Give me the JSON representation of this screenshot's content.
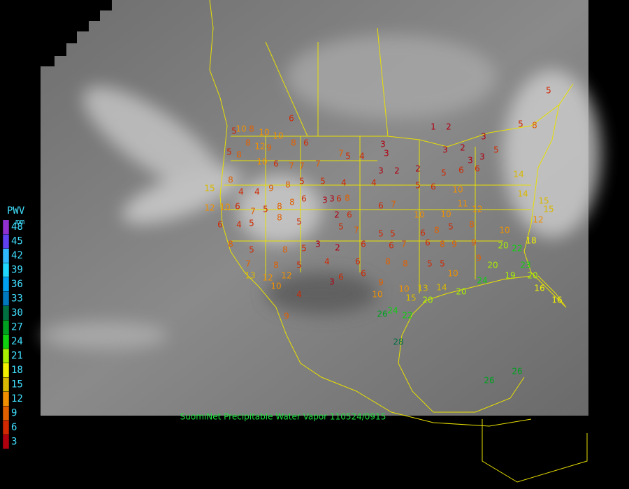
{
  "legend": {
    "title": "PWV",
    "unit": "mm",
    "entries": [
      {
        "label": "48",
        "color": "#9030d0"
      },
      {
        "label": "45",
        "color": "#6040f0"
      },
      {
        "label": "42",
        "color": "#30b8ff"
      },
      {
        "label": "39",
        "color": "#20d8ff"
      },
      {
        "label": "36",
        "color": "#00a0f0"
      },
      {
        "label": "33",
        "color": "#0078c0"
      },
      {
        "label": "30",
        "color": "#007040"
      },
      {
        "label": "27",
        "color": "#00a020"
      },
      {
        "label": "24",
        "color": "#10d010"
      },
      {
        "label": "21",
        "color": "#a8f000"
      },
      {
        "label": "18",
        "color": "#f0f000"
      },
      {
        "label": "15",
        "color": "#d8b800"
      },
      {
        "label": "12",
        "color": "#f09000"
      },
      {
        "label": "9",
        "color": "#e06000"
      },
      {
        "label": "6",
        "color": "#d02800"
      },
      {
        "label": "3",
        "color": "#b00010"
      }
    ]
  },
  "caption": "SuomiNet Precipitable Water Vapor 110524/0915",
  "stations": [
    6,
    5,
    10,
    8,
    10,
    10,
    8,
    6,
    8,
    12,
    9,
    5,
    8,
    10,
    6,
    7,
    7,
    7,
    7,
    5,
    4,
    3,
    3,
    3,
    2,
    2,
    1,
    2,
    3,
    3,
    2,
    3,
    3,
    5,
    6,
    6,
    5,
    5,
    8,
    5,
    15,
    8,
    4,
    4,
    9,
    8,
    5,
    5,
    4,
    4,
    5,
    6,
    10,
    12,
    10,
    6,
    7,
    5,
    8,
    8,
    6,
    3,
    3,
    6,
    8,
    6,
    2,
    6,
    7,
    10,
    10,
    11,
    12,
    6,
    4,
    5,
    8,
    5,
    5,
    7,
    5,
    5,
    6,
    8,
    5,
    8,
    10,
    8,
    5,
    8,
    5,
    3,
    2,
    6,
    6,
    7,
    6,
    8,
    9,
    9,
    20,
    22,
    18,
    15,
    12,
    15,
    14,
    14,
    7,
    8,
    5,
    4,
    6,
    8,
    8,
    5,
    5,
    10,
    9,
    20,
    23,
    20,
    13,
    12,
    12,
    3,
    6,
    6,
    9,
    10,
    13,
    14,
    20,
    24,
    19,
    16,
    16,
    10,
    4,
    10,
    15,
    20,
    26,
    24,
    22,
    9,
    28,
    26,
    26
  ]
}
